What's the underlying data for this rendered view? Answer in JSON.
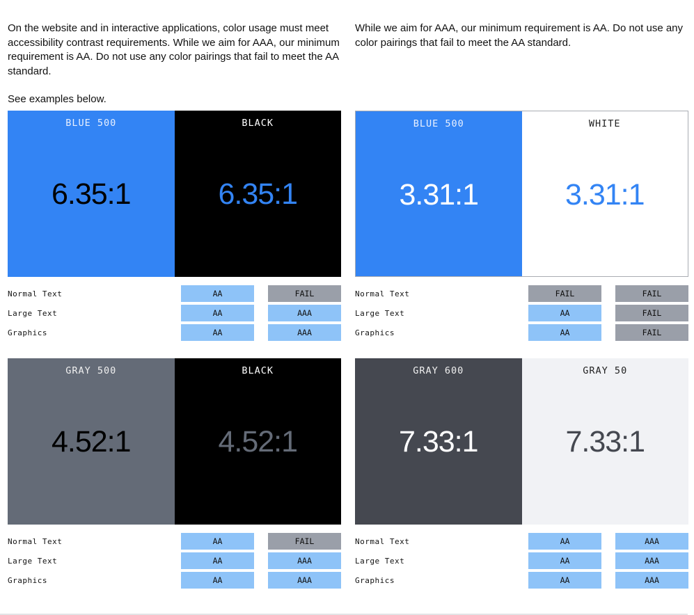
{
  "intro": {
    "left": [
      "On the website and in interactive applications, color usage must meet accessibility contrast requirements. While we aim for AAA, our minimum requirement is AA. Do not use any color pairings that fail to meet the AA standard.",
      "See examples below."
    ],
    "right": [
      "While we aim for AAA, our minimum requirement is AA. Do not use any color pairings that fail to meet the AA standard."
    ]
  },
  "colors": {
    "pass": "#8ec3f8",
    "fail": "#9a9fa9"
  },
  "blocks": [
    {
      "swatches": [
        {
          "name": "BLUE 500",
          "ratio": "6.35:1",
          "bg": "#3384f4",
          "fg": "#000000",
          "label_color": "#e8f0ff"
        },
        {
          "name": "BLACK",
          "ratio": "6.35:1",
          "bg": "#000000",
          "fg": "#3384f4",
          "label_color": "#ffffff"
        }
      ],
      "rows": [
        {
          "label": "Normal Text",
          "results": [
            "AA",
            "FAIL"
          ]
        },
        {
          "label": "Large Text",
          "results": [
            "AA",
            "AAA"
          ]
        },
        {
          "label": "Graphics",
          "results": [
            "AA",
            "AAA"
          ]
        }
      ]
    },
    {
      "swatches": [
        {
          "name": "BLUE 500",
          "ratio": "3.31:1",
          "bg": "#3384f4",
          "fg": "#ffffff",
          "label_color": "#e8f0ff"
        },
        {
          "name": "WHITE",
          "ratio": "3.31:1",
          "bg": "#ffffff",
          "fg": "#3384f4",
          "label_color": "#222222"
        }
      ],
      "rows": [
        {
          "label": "Normal Text",
          "results": [
            "FAIL",
            "FAIL"
          ]
        },
        {
          "label": "Large Text",
          "results": [
            "AA",
            "FAIL"
          ]
        },
        {
          "label": "Graphics",
          "results": [
            "AA",
            "FAIL"
          ]
        }
      ]
    },
    {
      "swatches": [
        {
          "name": "GRAY 500",
          "ratio": "4.52:1",
          "bg": "#646b77",
          "fg": "#000000",
          "label_color": "#f0f0f0"
        },
        {
          "name": "BLACK",
          "ratio": "4.52:1",
          "bg": "#000000",
          "fg": "#646b77",
          "label_color": "#ffffff"
        }
      ],
      "rows": [
        {
          "label": "Normal Text",
          "results": [
            "AA",
            "FAIL"
          ]
        },
        {
          "label": "Large Text",
          "results": [
            "AA",
            "AAA"
          ]
        },
        {
          "label": "Graphics",
          "results": [
            "AA",
            "AAA"
          ]
        }
      ]
    },
    {
      "swatches": [
        {
          "name": "GRAY 600",
          "ratio": "7.33:1",
          "bg": "#454850",
          "fg": "#ffffff",
          "label_color": "#f0f0f0"
        },
        {
          "name": "GRAY 50",
          "ratio": "7.33:1",
          "bg": "#f1f2f5",
          "fg": "#454850",
          "label_color": "#222222"
        }
      ],
      "rows": [
        {
          "label": "Normal Text",
          "results": [
            "AA",
            "AAA"
          ]
        },
        {
          "label": "Large Text",
          "results": [
            "AA",
            "AAA"
          ]
        },
        {
          "label": "Graphics",
          "results": [
            "AA",
            "AAA"
          ]
        }
      ]
    }
  ]
}
